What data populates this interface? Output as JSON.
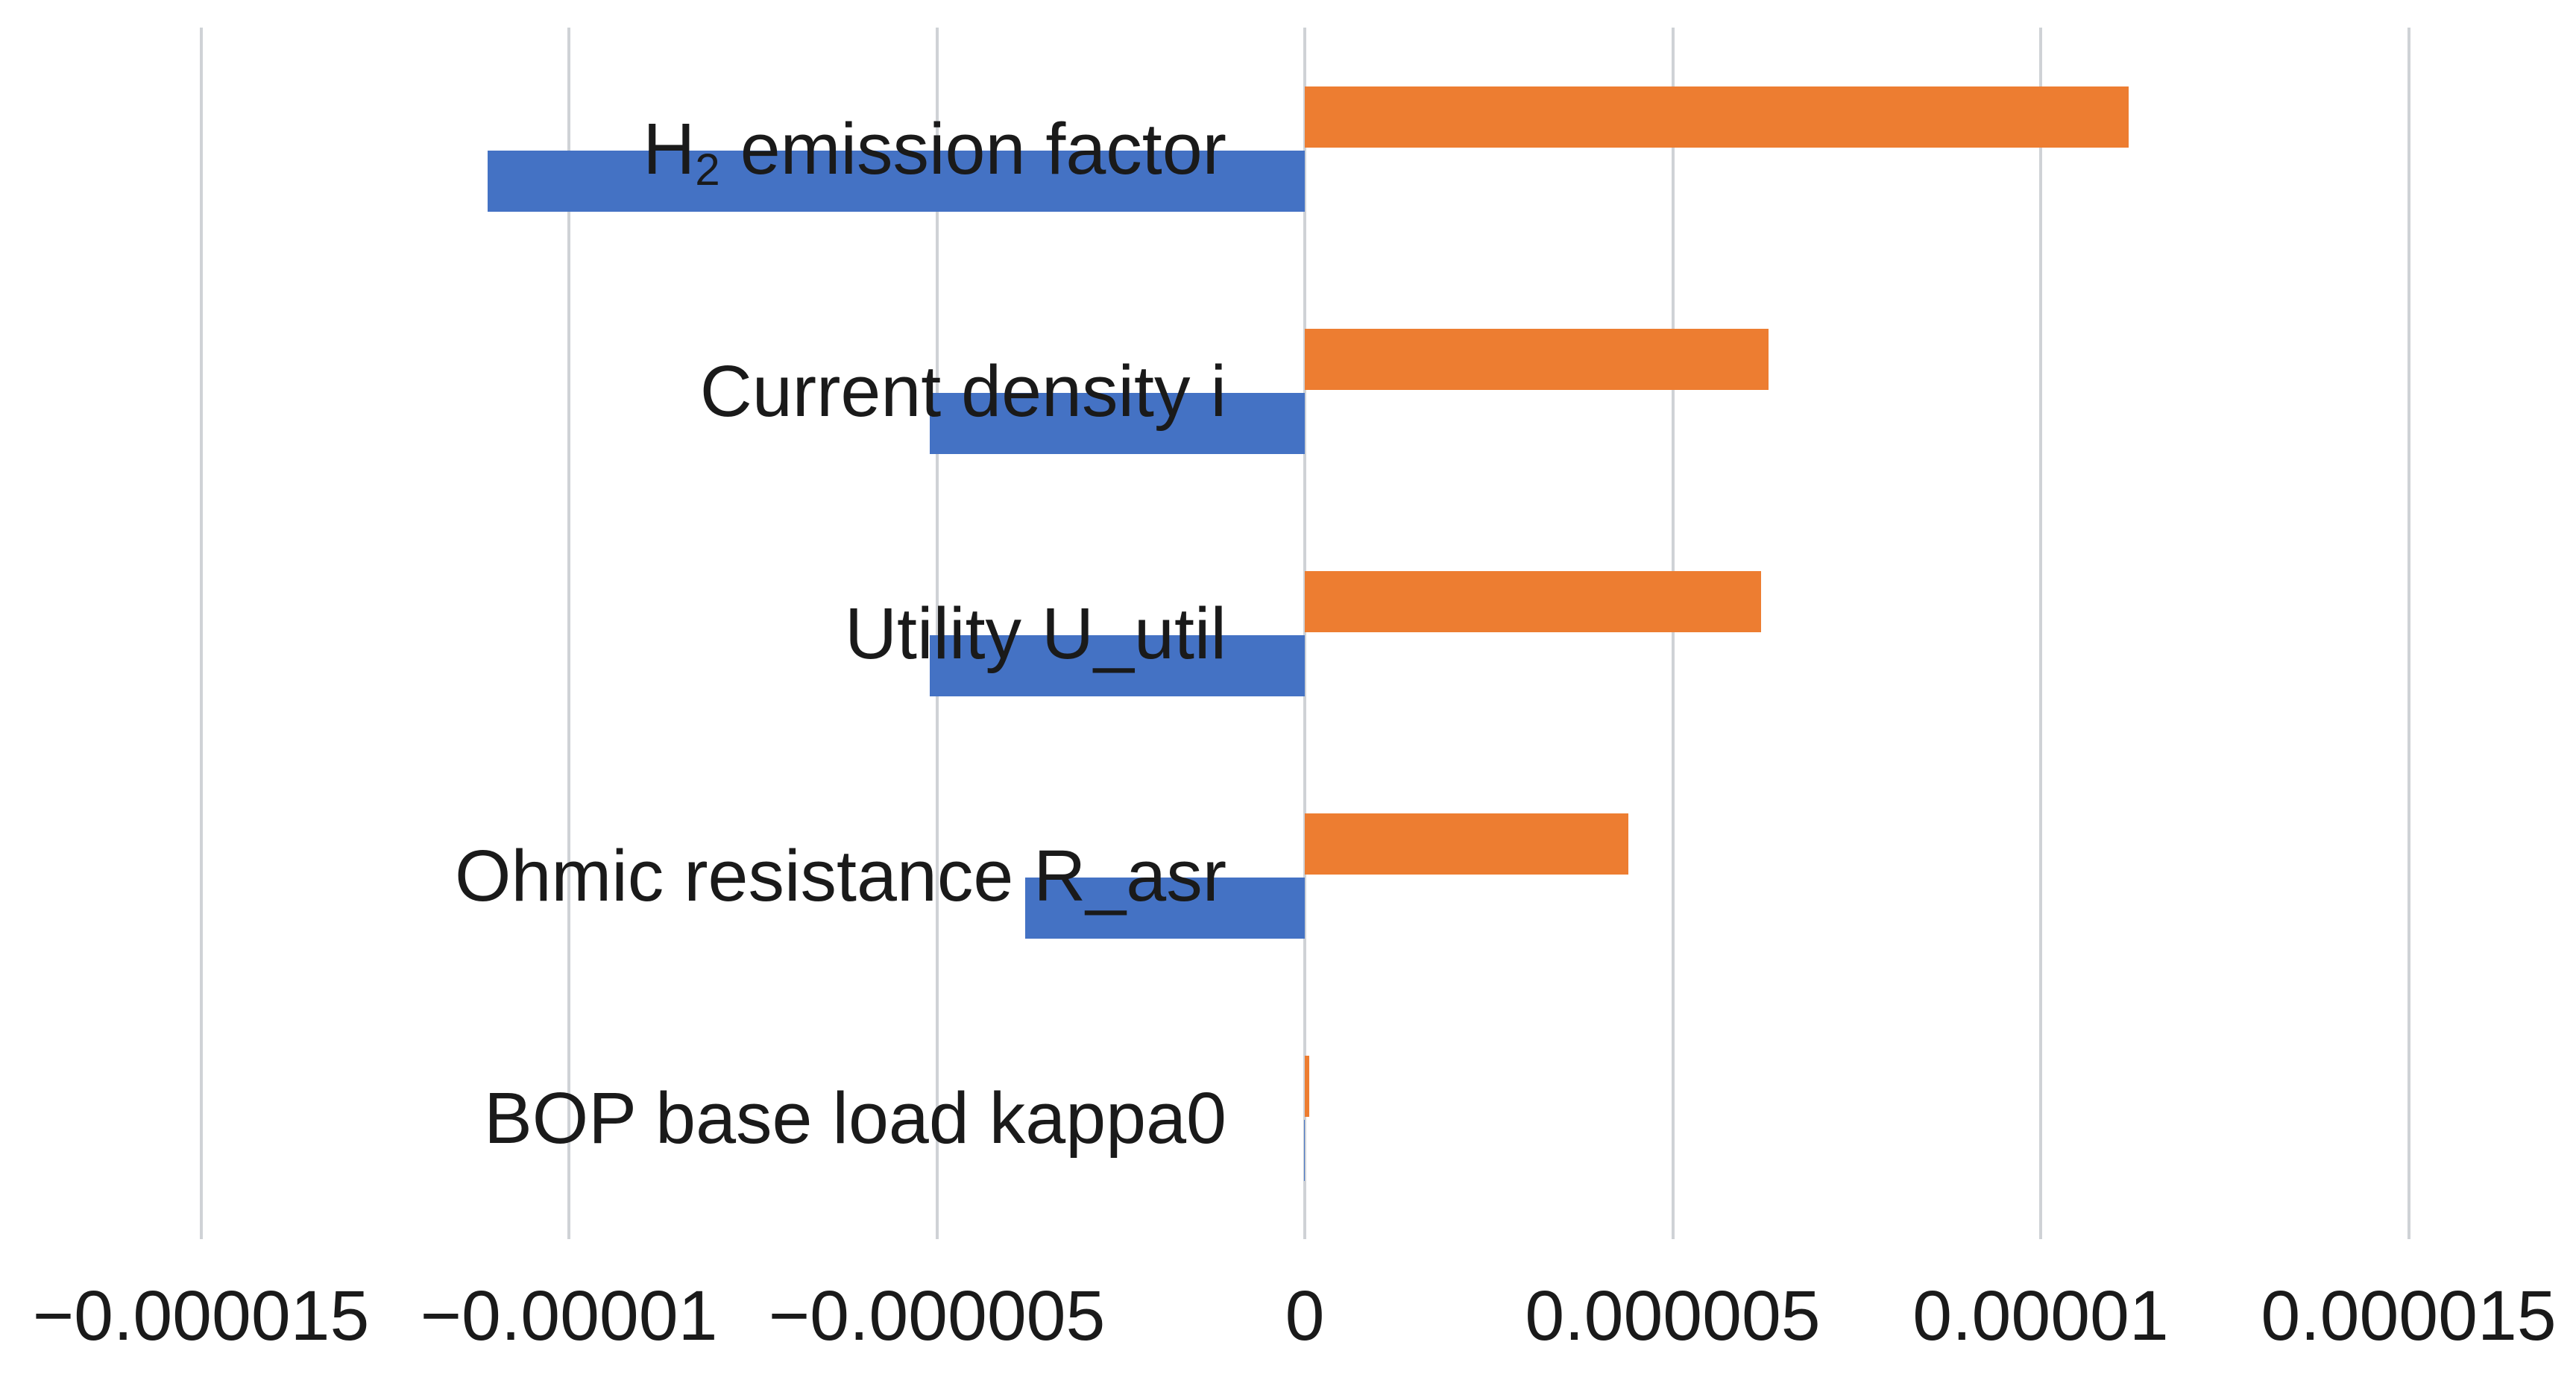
{
  "page": {
    "background": "#FFFFFF",
    "title": ""
  },
  "chart_data": {
    "type": "bar",
    "orientation": "horizontal",
    "title": "",
    "xlabel": "",
    "ylabel": "",
    "legend": "none",
    "categories": [
      "H₂ emission factor",
      "Current density i",
      "Utility U_util",
      "Ohmic resistance R_asr",
      "BOP base load kappa0"
    ],
    "category_label_parts": [
      {
        "main": "H",
        "sub": "2",
        "rest": " emission factor"
      },
      null,
      null,
      null,
      null
    ],
    "series": [
      {
        "name": "series_orange_positive",
        "color": "#ED7D31",
        "values": [
          1.12e-05,
          6.3e-06,
          6.2e-06,
          4.4e-06,
          6e-08
        ]
      },
      {
        "name": "series_blue_negative",
        "color": "#4472C4",
        "values": [
          -1.11e-05,
          -5.1e-06,
          -5.1e-06,
          -3.8e-06,
          -1e-08
        ]
      }
    ],
    "x_axis": {
      "range": [
        -1.5e-05,
        1.5e-05
      ],
      "ticks": [
        -1.5e-05,
        -1e-05,
        -5e-06,
        0,
        5e-06,
        1e-05,
        1.5e-05
      ],
      "tick_labels": [
        "−0.000015",
        "−0.00001",
        "−0.000005",
        "0",
        "0.000005",
        "0.00001",
        "0.000015"
      ],
      "gridlines": true,
      "gridline_color": "#CFD2D6"
    },
    "text_color": "#1A1A1A"
  }
}
